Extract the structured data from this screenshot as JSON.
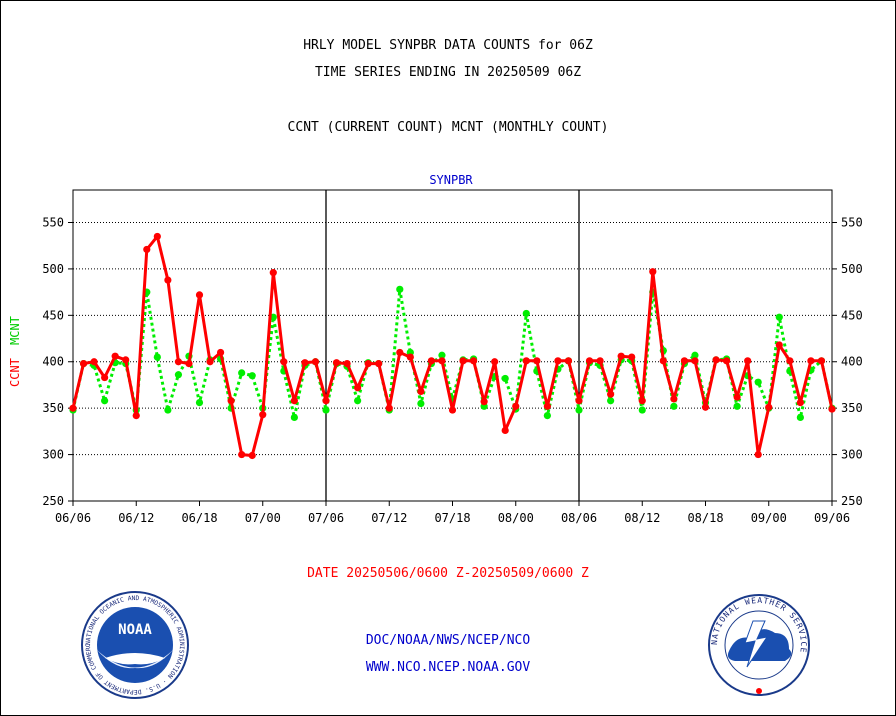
{
  "header": {
    "title1": "HRLY MODEL SYNPBR DATA COUNTS for 06Z",
    "title2": "TIME SERIES ENDING IN 20250509 06Z",
    "subtitle": "CCNT (CURRENT COUNT) MCNT (MONTHLY COUNT)"
  },
  "footer": {
    "date_range": "DATE 20250506/0600 Z-20250509/0600 Z",
    "org_path": "DOC/NOAA/NWS/NCEP/NCO",
    "website": "WWW.NCO.NCEP.NOAA.GOV"
  },
  "logos": {
    "noaa_text": "NOAA",
    "noaa_ring": "NATIONAL OCEANIC AND ATMOSPHERIC ADMINISTRATION · U.S. DEPARTMENT OF COMMERCE",
    "nws_ring": "NATIONAL WEATHER SERVICE"
  },
  "chart_data": {
    "type": "line",
    "title": "SYNPBR",
    "ylabel_ccnt": "CCNT",
    "ylabel_mcnt": "MCNT",
    "ylim": [
      250,
      585
    ],
    "y_ticks": [
      250,
      300,
      350,
      400,
      450,
      500,
      550
    ],
    "x_ticks": [
      "06/06",
      "06/12",
      "06/18",
      "07/00",
      "07/06",
      "07/12",
      "07/18",
      "08/00",
      "08/06",
      "08/12",
      "08/18",
      "09/00",
      "09/06"
    ],
    "x_range": [
      0,
      72
    ],
    "grid": true,
    "day_dividers": [
      24,
      48
    ],
    "colors": {
      "ccnt": "#ff0000",
      "mcnt": "#00ee00",
      "axis": "#000000",
      "title": "#0000cc"
    },
    "series": [
      {
        "name": "CCNT",
        "x": [
          0,
          1,
          2,
          3,
          4,
          5,
          6,
          7,
          8,
          9,
          10,
          11,
          12,
          13,
          14,
          15,
          16,
          17,
          18,
          19,
          20,
          21,
          22,
          23,
          24,
          25,
          26,
          27,
          28,
          29,
          30,
          31,
          32,
          33,
          34,
          35,
          36,
          37,
          38,
          39,
          40,
          41,
          42,
          43,
          44,
          45,
          46,
          47,
          48,
          49,
          50,
          51,
          52,
          53,
          54,
          55,
          56,
          57,
          58,
          59,
          60,
          61,
          62,
          63,
          64,
          65,
          66,
          67,
          68,
          69,
          70,
          71,
          72
        ],
        "values": [
          350,
          398,
          400,
          383,
          406,
          402,
          342,
          521,
          535,
          488,
          400,
          398,
          472,
          400,
          410,
          358,
          300,
          299,
          343,
          496,
          400,
          358,
          399,
          400,
          358,
          399,
          398,
          372,
          398,
          398,
          350,
          410,
          405,
          368,
          401,
          401,
          348,
          401,
          401,
          357,
          400,
          326,
          352,
          401,
          401,
          352,
          401,
          401,
          358,
          401,
          401,
          365,
          406,
          405,
          358,
          497,
          401,
          360,
          401,
          401,
          351,
          402,
          401,
          362,
          401,
          300,
          351,
          418,
          401,
          356,
          401,
          401,
          349
        ]
      },
      {
        "name": "MCNT",
        "x": [
          0,
          1,
          2,
          3,
          4,
          5,
          6,
          7,
          8,
          9,
          10,
          11,
          12,
          13,
          14,
          15,
          16,
          17,
          18,
          19,
          20,
          21,
          22,
          23,
          24,
          25,
          26,
          27,
          28,
          29,
          30,
          31,
          32,
          33,
          34,
          35,
          36,
          37,
          38,
          39,
          40,
          41,
          42,
          43,
          44,
          45,
          46,
          47,
          48,
          49,
          50,
          51,
          52,
          53,
          54,
          55,
          56,
          57,
          58,
          59,
          60,
          61,
          62,
          63,
          64,
          65,
          66,
          67,
          68,
          69,
          70,
          71,
          72
        ],
        "values": [
          348,
          398,
          396,
          358,
          399,
          398,
          348,
          475,
          405,
          348,
          386,
          406,
          356,
          402,
          403,
          350,
          388,
          385,
          350,
          448,
          390,
          340,
          396,
          400,
          348,
          398,
          395,
          358,
          399,
          398,
          348,
          478,
          410,
          355,
          398,
          407,
          360,
          402,
          403,
          352,
          384,
          382,
          349,
          452,
          390,
          342,
          392,
          401,
          348,
          399,
          396,
          358,
          402,
          401,
          348,
          475,
          412,
          352,
          398,
          407,
          356,
          402,
          403,
          352,
          385,
          378,
          350,
          448,
          390,
          340,
          391,
          401,
          350
        ]
      }
    ]
  }
}
